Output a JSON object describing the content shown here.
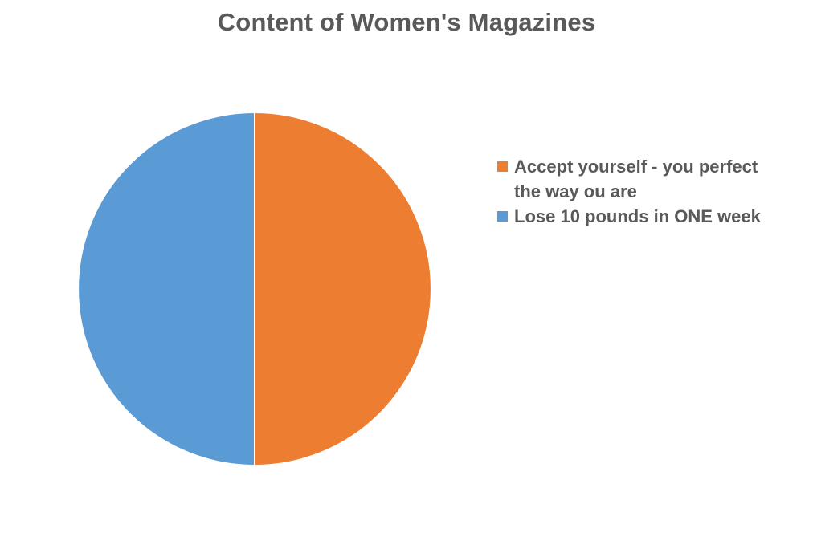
{
  "chart_data": {
    "type": "pie",
    "title": "Content of Women's Magazines",
    "categories": [
      "Accept yourself - you perfect the way ou are",
      "Lose 10 pounds in ONE week"
    ],
    "values": [
      50,
      50
    ],
    "colors": [
      "#ED7D31",
      "#5B9BD5"
    ],
    "legend_position": "right"
  }
}
